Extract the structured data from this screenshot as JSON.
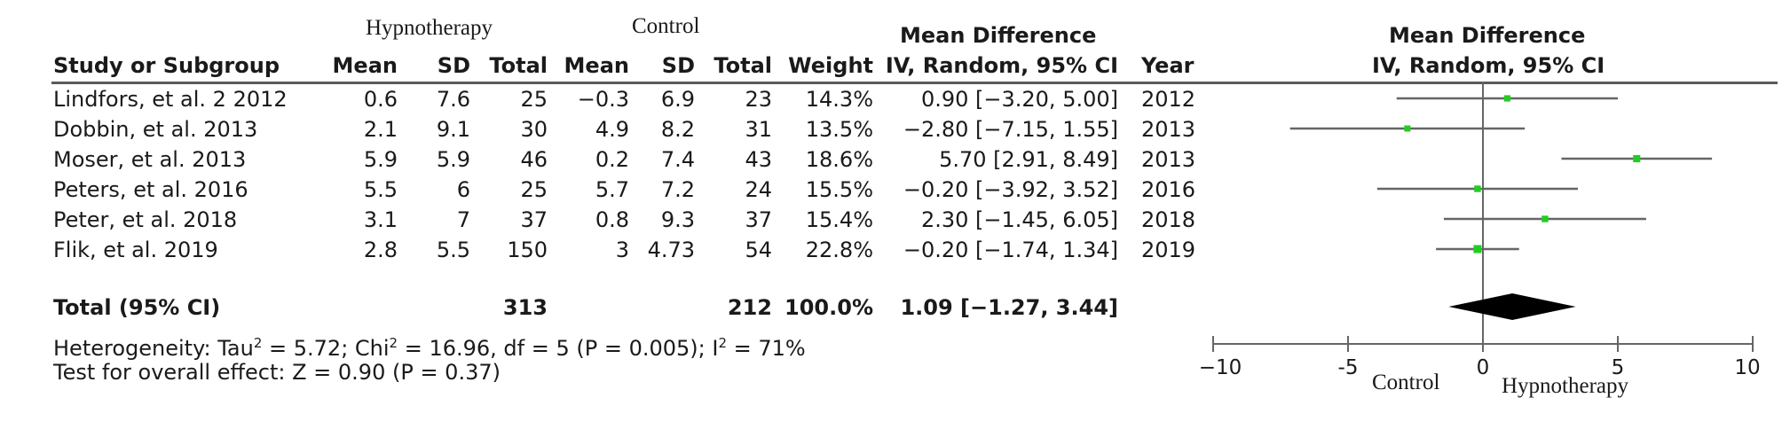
{
  "groups": {
    "experimental": "Hypnotherapy",
    "control": "Control",
    "effect_header": "Mean Difference",
    "effect_subheader": "IV, Random, 95% CI",
    "plot_header": "Mean Difference",
    "plot_subheader": "IV, Random, 95% CI"
  },
  "columns": {
    "study": "Study or Subgroup",
    "mean_e": "Mean",
    "sd_e": "SD",
    "total_e": "Total",
    "mean_c": "Mean",
    "sd_c": "SD",
    "total_c": "Total",
    "weight": "Weight",
    "year": "Year"
  },
  "rows": [
    {
      "study": "Lindfors, et al. 2 2012",
      "mean_e": "0.6",
      "sd_e": "7.6",
      "total_e": "25",
      "mean_c": "−0.3",
      "sd_c": "6.9",
      "total_c": "23",
      "weight": "14.3%",
      "ci_text": "0.90 [−3.20, 5.00]",
      "year": "2012"
    },
    {
      "study": "Dobbin, et al. 2013",
      "mean_e": "2.1",
      "sd_e": "9.1",
      "total_e": "30",
      "mean_c": "4.9",
      "sd_c": "8.2",
      "total_c": "31",
      "weight": "13.5%",
      "ci_text": "−2.80 [−7.15, 1.55]",
      "year": "2013"
    },
    {
      "study": "Moser, et al. 2013",
      "mean_e": "5.9",
      "sd_e": "5.9",
      "total_e": "46",
      "mean_c": "0.2",
      "sd_c": "7.4",
      "total_c": "43",
      "weight": "18.6%",
      "ci_text": "5.70 [2.91, 8.49]",
      "year": "2013"
    },
    {
      "study": "Peters, et al. 2016",
      "mean_e": "5.5",
      "sd_e": "6",
      "total_e": "25",
      "mean_c": "5.7",
      "sd_c": "7.2",
      "total_c": "24",
      "weight": "15.5%",
      "ci_text": "−0.20 [−3.92, 3.52]",
      "year": "2016"
    },
    {
      "study": "Peter, et al. 2018",
      "mean_e": "3.1",
      "sd_e": "7",
      "total_e": "37",
      "mean_c": "0.8",
      "sd_c": "9.3",
      "total_c": "37",
      "weight": "15.4%",
      "ci_text": "2.30 [−1.45, 6.05]",
      "year": "2018"
    },
    {
      "study": "Flik, et al. 2019",
      "mean_e": "2.8",
      "sd_e": "5.5",
      "total_e": "150",
      "mean_c": "3",
      "sd_c": "4.73",
      "total_c": "54",
      "weight": "22.8%",
      "ci_text": "−0.20 [−1.74, 1.34]",
      "year": "2019"
    }
  ],
  "total": {
    "label": "Total (95% CI)",
    "total_e": "313",
    "total_c": "212",
    "weight": "100.0%",
    "ci_text": "1.09 [−1.27, 3.44]"
  },
  "heterogeneity": {
    "prefix": "Heterogeneity: Tau",
    "tau_sup": "2",
    "mid": " = 5.72; Chi",
    "chi_sup": "2",
    "mid2": " = 16.96, df = 5 (P = 0.005); I",
    "i_sup": "2",
    "suffix": " = 71%"
  },
  "overall_test": "Test for overall effect: Z = 0.90 (P = 0.37)",
  "favours": {
    "left": "Control",
    "right": "Hypnotherapy"
  },
  "colors": {
    "point": "#22cc22",
    "ci_line": "#666666",
    "diamond": "#000000",
    "rule": "#5a5a5a"
  },
  "chart_data": {
    "type": "scatter",
    "title": "Mean Difference",
    "subtitle": "IV, Random, 95% CI",
    "xlim": [
      -10,
      10
    ],
    "x_ticks": [
      -10,
      -5,
      0,
      5,
      10
    ],
    "x_tick_labels": [
      "−10",
      "-5",
      "0",
      "5",
      "10"
    ],
    "series": [
      {
        "categories": [
          "Lindfors, et al. 2 2012",
          "Dobbin, et al. 2013",
          "Moser, et al. 2013",
          "Peters, et al. 2016",
          "Peter, et al. 2018",
          "Flik, et al. 2019"
        ],
        "estimate": [
          0.9,
          -2.8,
          5.7,
          -0.2,
          2.3,
          -0.2
        ],
        "ci_low": [
          -3.2,
          -7.15,
          2.91,
          -3.92,
          -1.45,
          -1.74
        ],
        "ci_high": [
          5.0,
          1.55,
          8.49,
          3.52,
          6.05,
          1.34
        ],
        "weight": [
          14.3,
          13.5,
          18.6,
          15.5,
          15.4,
          22.8
        ]
      }
    ],
    "pooled": {
      "label": "Total (95% CI)",
      "estimate": 1.09,
      "ci_low": -1.27,
      "ci_high": 3.44
    },
    "grid": false
  }
}
